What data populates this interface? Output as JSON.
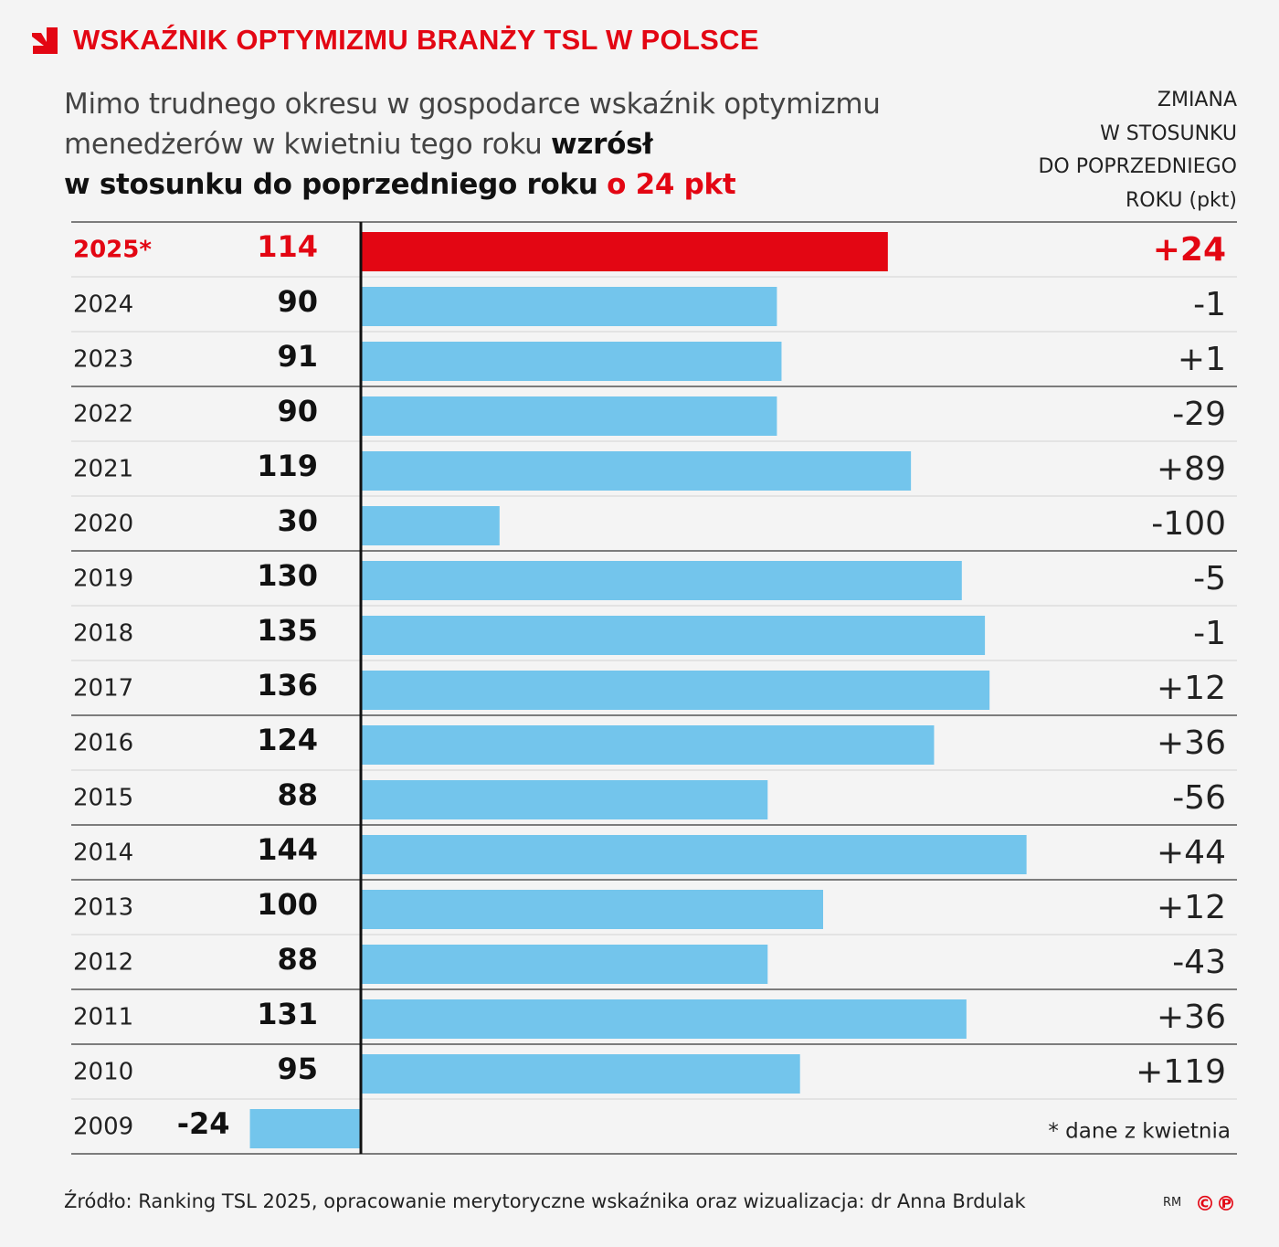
{
  "chart_data": {
    "type": "bar",
    "orientation": "horizontal",
    "title": "WSKAŹNIK OPTYMIZMU BRANŻY TSL W POLSCE",
    "subtitle": [
      "Mimo trudnego okresu w gospodarce wskaźnik optymizmu",
      "menedżerów w kwietniu tego roku",
      "wzrósł",
      "w stosunku do poprzedniego roku",
      "o 24 pkt"
    ],
    "change_header": [
      "ZMIANA",
      "W STOSUNKU",
      "DO POPRZEDNIEGO",
      "ROKU (pkt)"
    ],
    "categories": [
      "2025*",
      "2024",
      "2023",
      "2022",
      "2021",
      "2020",
      "2019",
      "2018",
      "2017",
      "2016",
      "2015",
      "2014",
      "2013",
      "2012",
      "2011",
      "2010",
      "2009"
    ],
    "values": [
      114,
      90,
      91,
      90,
      119,
      30,
      130,
      135,
      136,
      124,
      88,
      144,
      100,
      88,
      131,
      95,
      -24
    ],
    "color": "#73c5ec",
    "colors": [
      "#e30613",
      "#73c5ec",
      "#73c5ec",
      "#73c5ec",
      "#73c5ec",
      "#73c5ec",
      "#73c5ec",
      "#73c5ec",
      "#73c5ec",
      "#73c5ec",
      "#73c5ec",
      "#73c5ec",
      "#73c5ec",
      "#73c5ec",
      "#73c5ec",
      "#73c5ec",
      "#73c5ec"
    ],
    "changes": [
      24,
      -1,
      1,
      -29,
      89,
      -100,
      -5,
      -1,
      12,
      36,
      -56,
      44,
      12,
      -43,
      36,
      119
    ],
    "change_labels": [
      "+24",
      "-1",
      "+1",
      "-29",
      "+89",
      "-100",
      "-5",
      "-1",
      "+12",
      "+36",
      "-56",
      "+44",
      "+12",
      "-43",
      "+36",
      "+119"
    ],
    "footnote": "* dane z kwietnia",
    "source": "Źródło: Ranking TSL 2025, opracowanie merytoryczne wskaźnika oraz wizualizacja: dr Anna Brdulak",
    "credit": "RM",
    "logo": "©℗"
  }
}
